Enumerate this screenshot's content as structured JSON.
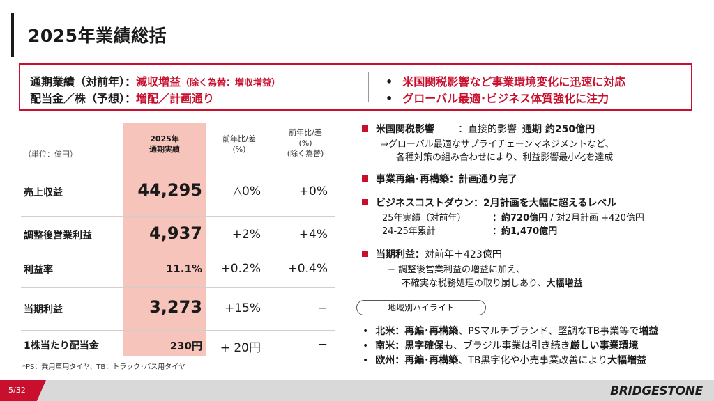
{
  "title": "2025年業績総括",
  "summary": {
    "line1_label": "通期業績（対前年）：",
    "line1_value": "減収増益",
    "line1_note": "（除く為替：増収増益）",
    "line2_label": "配当金／株（予想）：",
    "line2_value": "増配／計画通り",
    "bullets": [
      "米国関税影響など事業環境変化に迅速に対応",
      "グローバル最適･ビジネス体質強化に注力"
    ],
    "bullet_mark": "•"
  },
  "table": {
    "unit": "（単位：億円）",
    "headers": {
      "col1_line1": "2025年",
      "col1_line2": "通期実績",
      "col2_line1": "前年比/差",
      "col2_line2": "(%)",
      "col3_line1": "前年比/差",
      "col3_line2": "(%)",
      "col3_line3": "(除く為替)"
    },
    "rows": [
      {
        "label": "売上収益",
        "value": "44,295",
        "yoy": "△0%",
        "yoy_ex": "+0%"
      },
      {
        "label": "調整後営業利益",
        "value": "4,937",
        "yoy": "+2%",
        "yoy_ex": "+4%"
      },
      {
        "label": "利益率",
        "value": "11.1%",
        "yoy": "+0.2%",
        "yoy_ex": "+0.4%"
      },
      {
        "label": "当期利益",
        "value": "3,273",
        "yoy": "+15%",
        "yoy_ex": "−"
      },
      {
        "label": "1株当たり配当金",
        "value": "230円",
        "yoy": "+ 20円",
        "yoy_ex": "−"
      }
    ],
    "footnote": "*PS：乗用車用タイヤ、TB：トラック･バス用タイヤ"
  },
  "right": {
    "tariff_head": "米国関税影響",
    "tariff_mid": "：直接的影響",
    "tariff_val": "通期 約250億円",
    "tariff_sub1": "⇒グローバル最適なサプライチェーンマネジメントなど、",
    "tariff_sub2": "各種対策の組み合わせにより、利益影響最小化を達成",
    "restructure": "事業再編･再構築：計画通り完了",
    "costdown_head": "ビジネスコストダウン：2月計画を大幅に超えるレベル",
    "cd_row1_label": "25年実績（対前年）",
    "cd_row1_val_b": "：約720億円",
    "cd_row1_val": " / 対2月計画 +420億円",
    "cd_row2_label": "24-25年累計",
    "cd_row2_val": "：約1,470億円",
    "profit_head": "当期利益：",
    "profit_val": "対前年＋423億円",
    "profit_sub1": "−  調整後営業利益の増益に加え、",
    "profit_sub2": "不確実な税務処理の取り崩しあり、",
    "profit_sub2_b": "大幅増益",
    "region_title": "地域別ハイライト",
    "regions": [
      {
        "bullet": "•",
        "name": "北米：再編･再構築",
        "text": "、PSマルチブランド、堅調なTB事業等で",
        "end_b": "増益"
      },
      {
        "bullet": "•",
        "name": "南米：黒字確保",
        "text": "も、ブラジル事業は引き続き",
        "end_b": "厳しい事業環境"
      },
      {
        "bullet": "•",
        "name": "欧州：再編･再構築",
        "text": "、TB黒字化や小売事業改善により",
        "end_b": "大幅増益"
      }
    ]
  },
  "footer": {
    "page": "5/32",
    "logo": "BRIDGESTONE"
  },
  "colors": {
    "accent": "#c8102e",
    "highlight": "#f7c4bb",
    "band": "#d9d9d9"
  }
}
